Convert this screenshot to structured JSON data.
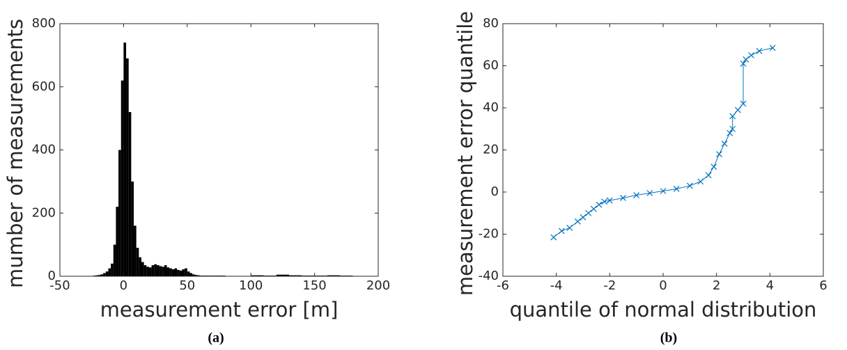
{
  "chart_data": [
    {
      "type": "histogram",
      "xlabel": "measurement error  [m]",
      "ylabel": "mumber of measurements",
      "caption": "(a)",
      "color": "#000000",
      "bins": [
        -24,
        -22,
        -20,
        -18,
        -16,
        -14,
        -12,
        -10,
        -8,
        -6,
        -4,
        -2,
        0,
        2,
        4,
        6,
        8,
        10,
        12,
        14,
        16,
        18,
        20,
        22,
        24,
        26,
        28,
        30,
        32,
        34,
        36,
        38,
        40,
        42,
        44,
        46,
        48,
        50,
        52,
        54,
        56,
        58,
        60,
        70,
        80,
        90,
        100,
        110,
        120,
        130,
        140,
        150,
        160,
        170,
        180
      ],
      "counts": [
        2,
        3,
        4,
        6,
        10,
        15,
        25,
        40,
        100,
        220,
        400,
        620,
        740,
        690,
        520,
        300,
        160,
        90,
        60,
        45,
        35,
        30,
        28,
        35,
        38,
        35,
        32,
        30,
        35,
        28,
        25,
        22,
        25,
        20,
        18,
        22,
        25,
        15,
        10,
        6,
        4,
        3,
        2,
        2,
        1,
        1,
        3,
        2,
        5,
        3,
        2,
        2,
        3,
        2
      ],
      "xlim": [
        -50,
        200
      ],
      "xticks": [
        -50,
        0,
        50,
        100,
        150,
        200
      ],
      "ylim": [
        0,
        800
      ],
      "yticks": [
        0,
        200,
        400,
        600,
        800
      ]
    },
    {
      "type": "qq",
      "xlabel": "quantile of normal distribution",
      "ylabel": "measurement error quantile",
      "caption": "(b)",
      "color": "#0072bd",
      "marker": "x",
      "x": [
        -4.1,
        -3.8,
        -3.5,
        -3.2,
        -3.0,
        -2.8,
        -2.6,
        -2.4,
        -2.2,
        -2.0,
        -1.5,
        -1.0,
        -0.5,
        0,
        0.5,
        1.0,
        1.4,
        1.7,
        1.9,
        2.1,
        2.3,
        2.5,
        2.6,
        2.6,
        2.8,
        3.0,
        3.0,
        3.1,
        3.3,
        3.6,
        4.1
      ],
      "values": [
        -21.5,
        -18.5,
        -17,
        -14,
        -12,
        -10,
        -8,
        -6,
        -4.5,
        -4,
        -2.8,
        -1.5,
        -0.5,
        0.5,
        1.5,
        3,
        5,
        8,
        12,
        18,
        23,
        28,
        30,
        36,
        39,
        42,
        61,
        63,
        65,
        67,
        68.5
      ],
      "xlim": [
        -6,
        6
      ],
      "xticks": [
        -6,
        -4,
        -2,
        0,
        2,
        4,
        6
      ],
      "ylim": [
        -40,
        80
      ],
      "yticks": [
        -40,
        -20,
        0,
        20,
        40,
        60,
        80
      ]
    }
  ]
}
